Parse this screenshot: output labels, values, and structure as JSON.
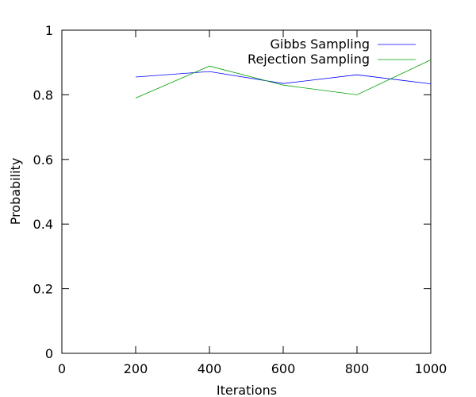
{
  "chart_data": {
    "type": "line",
    "title": "",
    "xlabel": "Iterations",
    "ylabel": "Probability",
    "xlim": [
      0,
      1000
    ],
    "ylim": [
      0,
      1
    ],
    "x_ticks": [
      "0",
      "200",
      "400",
      "600",
      "800",
      "1000"
    ],
    "y_ticks": [
      "0",
      "0.2",
      "0.4",
      "0.6",
      "0.8",
      "1"
    ],
    "x_tick_values": [
      0,
      200,
      400,
      600,
      800,
      1000
    ],
    "y_tick_values": [
      0,
      0.2,
      0.4,
      0.6,
      0.8,
      1
    ],
    "grid": false,
    "legend_position": "top-right",
    "series": [
      {
        "name": "Gibbs Sampling",
        "color": "#0000ff",
        "x": [
          200,
          400,
          600,
          800,
          1000
        ],
        "y": [
          0.855,
          0.872,
          0.835,
          0.862,
          0.834
        ]
      },
      {
        "name": "Rejection Sampling",
        "color": "#009e00",
        "x": [
          200,
          400,
          600,
          800,
          1000
        ],
        "y": [
          0.79,
          0.889,
          0.83,
          0.8,
          0.908
        ]
      }
    ]
  }
}
